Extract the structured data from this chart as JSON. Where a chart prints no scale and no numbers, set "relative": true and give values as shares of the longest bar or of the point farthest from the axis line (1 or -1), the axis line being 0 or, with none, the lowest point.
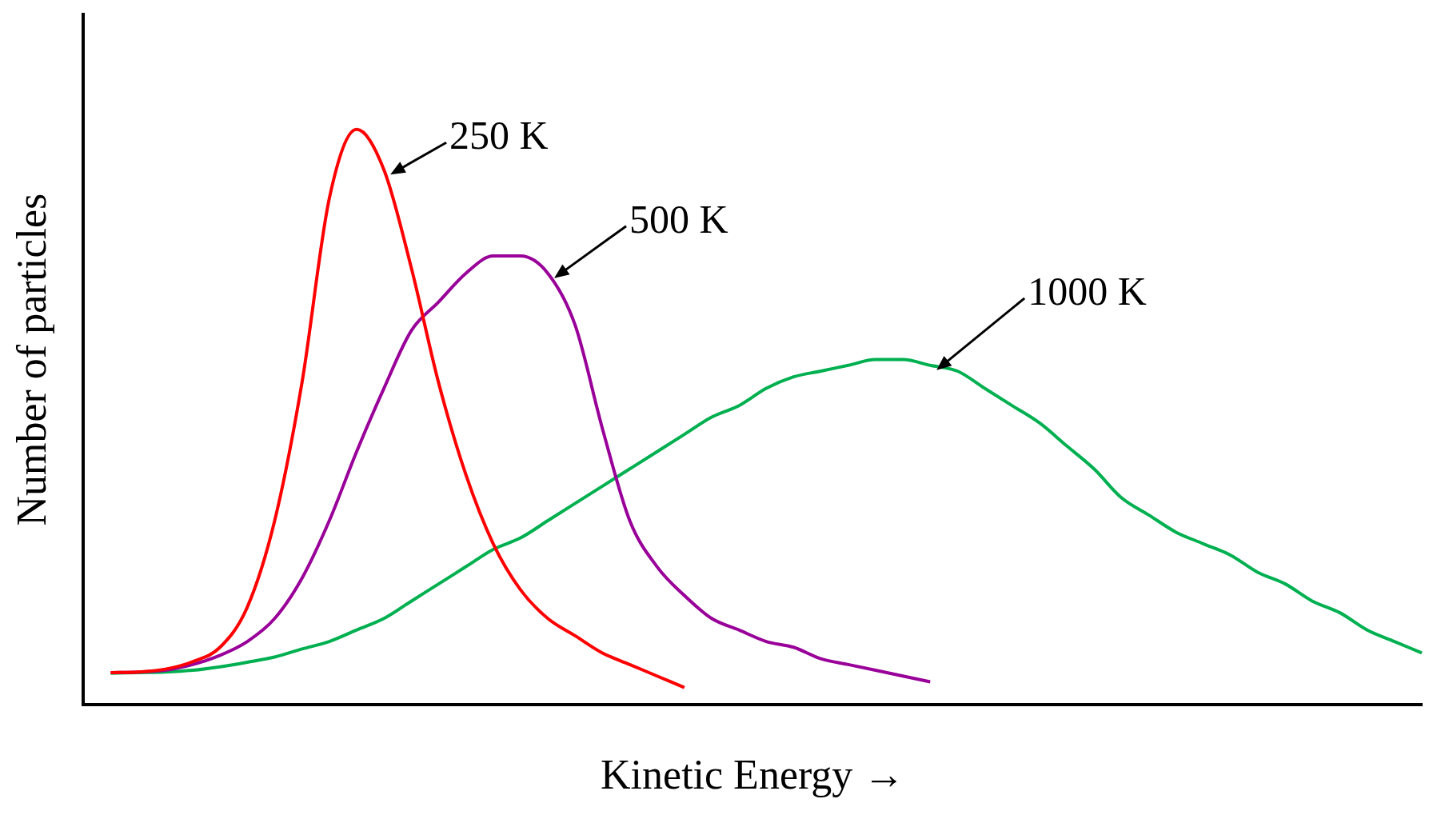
{
  "chart_data": {
    "type": "line",
    "relative": true,
    "xlabel": "Kinetic Energy →",
    "ylabel": "Number of particles",
    "legend": false,
    "grid": false,
    "marker": "none",
    "line_style": "solid",
    "categories": [
      null,
      null,
      null,
      null,
      null,
      null,
      null,
      null,
      null,
      null,
      null,
      null,
      null,
      null,
      null,
      null,
      null,
      null,
      null,
      null,
      null,
      null,
      null,
      null,
      null,
      null,
      null,
      null,
      null,
      null,
      null,
      null,
      null,
      null,
      null,
      null,
      null,
      null,
      null,
      null,
      null,
      null,
      null,
      null,
      null,
      null,
      null,
      null,
      null,
      null
    ],
    "series": [
      {
        "name": "250 K",
        "color": "#ff0000",
        "values": [
          null,
          0.056,
          0.057,
          0.062,
          0.075,
          0.1,
          0.17,
          0.32,
          0.56,
          0.88,
          1.0,
          0.93,
          0.76,
          0.56,
          0.4,
          0.28,
          0.2,
          0.15,
          0.12,
          0.09,
          0.07,
          0.05,
          0.03,
          null,
          null,
          null,
          null,
          null,
          null,
          null,
          null,
          null,
          null,
          null,
          null,
          null,
          null,
          null,
          null,
          null,
          null,
          null,
          null,
          null,
          null,
          null,
          null,
          null,
          null,
          null
        ]
      },
      {
        "name": "500 K",
        "color": "#990099",
        "values": [
          null,
          0.056,
          0.057,
          0.06,
          0.07,
          0.086,
          0.11,
          0.15,
          0.22,
          0.32,
          0.44,
          0.55,
          0.65,
          0.7,
          0.75,
          0.78,
          0.78,
          0.75,
          0.66,
          0.48,
          0.32,
          0.24,
          0.19,
          0.15,
          0.13,
          0.11,
          0.1,
          0.08,
          0.07,
          0.06,
          0.05,
          0.04,
          null,
          null,
          null,
          null,
          null,
          null,
          null,
          null,
          null,
          null,
          null,
          null,
          null,
          null,
          null,
          null,
          null,
          null
        ]
      },
      {
        "name": "1000 K",
        "color": "#00b050",
        "values": [
          null,
          0.055,
          0.056,
          0.057,
          0.06,
          0.066,
          0.074,
          0.083,
          0.097,
          0.11,
          0.13,
          0.15,
          0.18,
          0.21,
          0.24,
          0.27,
          0.29,
          0.32,
          0.35,
          0.38,
          0.41,
          0.44,
          0.47,
          0.5,
          0.52,
          0.55,
          0.57,
          0.58,
          0.59,
          0.6,
          0.6,
          0.59,
          0.58,
          0.55,
          0.52,
          0.49,
          0.45,
          0.41,
          0.36,
          0.33,
          0.3,
          0.28,
          0.26,
          0.23,
          0.21,
          0.18,
          0.16,
          0.13,
          0.11,
          0.09
        ]
      }
    ]
  }
}
